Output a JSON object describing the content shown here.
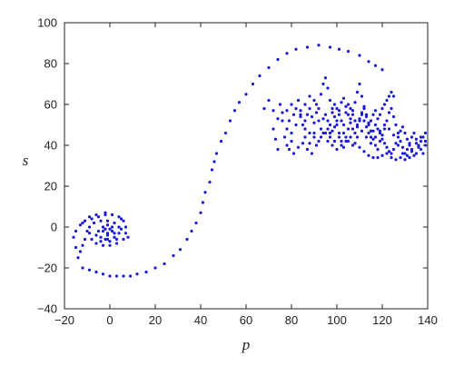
{
  "chart_data": {
    "type": "scatter",
    "title": "",
    "xlabel": "p",
    "ylabel": "s",
    "xlim": [
      -20,
      140
    ],
    "ylim": [
      -40,
      100
    ],
    "xticks": [
      -20,
      0,
      20,
      40,
      60,
      80,
      100,
      120,
      140
    ],
    "yticks": [
      -40,
      -20,
      0,
      20,
      40,
      60,
      80,
      100
    ],
    "grid": false,
    "legend": "none",
    "colors": {
      "points": "#1a1ad6",
      "axes": "#222222",
      "background": "#ffffff"
    },
    "series": [
      {
        "points": [
          [
            -15,
            -10
          ],
          [
            -14,
            -15
          ],
          [
            -12,
            -20
          ],
          [
            -9,
            -21
          ],
          [
            -6,
            -22
          ],
          [
            -3,
            -23
          ],
          [
            0,
            -24
          ],
          [
            3,
            -24
          ],
          [
            6,
            -24
          ],
          [
            9,
            -24
          ],
          [
            12,
            -23
          ],
          [
            16,
            -22
          ],
          [
            20,
            -20
          ],
          [
            24,
            -18
          ],
          [
            28,
            -14
          ],
          [
            31,
            -11
          ],
          [
            34,
            -6
          ],
          [
            36,
            -2
          ],
          [
            38,
            2
          ],
          [
            40,
            7
          ],
          [
            41,
            12
          ],
          [
            42,
            17
          ],
          [
            44,
            22
          ],
          [
            45,
            28
          ],
          [
            46,
            32
          ],
          [
            47,
            36
          ],
          [
            49,
            42
          ],
          [
            51,
            46
          ],
          [
            53,
            52
          ],
          [
            55,
            57
          ],
          [
            57,
            61
          ],
          [
            60,
            65
          ],
          [
            63,
            70
          ],
          [
            66,
            74
          ],
          [
            70,
            78
          ],
          [
            74,
            82
          ],
          [
            78,
            85
          ],
          [
            82,
            87
          ],
          [
            87,
            88
          ],
          [
            92,
            89
          ],
          [
            97,
            88
          ],
          [
            101,
            87
          ],
          [
            105,
            86
          ],
          [
            110,
            84
          ],
          [
            114,
            81
          ],
          [
            117,
            79
          ],
          [
            120,
            77
          ],
          [
            -16,
            -5
          ],
          [
            -15,
            -2
          ],
          [
            -13,
            1
          ],
          [
            -11,
            3
          ],
          [
            -8,
            4
          ],
          [
            -5,
            5
          ],
          [
            -2,
            6
          ],
          [
            1,
            6
          ],
          [
            4,
            5
          ],
          [
            6,
            3
          ],
          [
            7,
            0
          ],
          [
            7,
            -3
          ],
          [
            6,
            -6
          ],
          [
            3,
            -8
          ],
          [
            0,
            -9
          ],
          [
            -3,
            -9
          ],
          [
            -6,
            -8
          ],
          [
            -8,
            -6
          ],
          [
            -9,
            -3
          ],
          [
            -9,
            0
          ],
          [
            -7,
            2
          ],
          [
            -4,
            3
          ],
          [
            -1,
            3
          ],
          [
            2,
            2
          ],
          [
            4,
            0
          ],
          [
            4,
            -3
          ],
          [
            2,
            -5
          ],
          [
            -1,
            -6
          ],
          [
            -4,
            -5
          ],
          [
            -5,
            -2
          ],
          [
            -3,
            0
          ],
          [
            -1,
            1
          ],
          [
            1,
            0
          ],
          [
            1,
            -2
          ],
          [
            -1,
            -3
          ],
          [
            -3,
            -2
          ],
          [
            -2,
            -1
          ],
          [
            0,
            -1
          ],
          [
            -1,
            -4
          ],
          [
            -2,
            -6
          ],
          [
            2,
            -3
          ],
          [
            5,
            -1
          ],
          [
            -6,
            -4
          ],
          [
            -4,
            -7
          ],
          [
            0,
            -7
          ],
          [
            3,
            -6
          ],
          [
            -10,
            -2
          ],
          [
            -11,
            -6
          ],
          [
            -12,
            -9
          ],
          [
            -13,
            -12
          ],
          [
            8,
            -5
          ],
          [
            5,
            4
          ],
          [
            -2,
            7
          ],
          [
            -6,
            6
          ],
          [
            -9,
            5
          ],
          [
            -12,
            2
          ],
          [
            68,
            58
          ],
          [
            70,
            62
          ],
          [
            72,
            57
          ],
          [
            75,
            60
          ],
          [
            76,
            52
          ],
          [
            78,
            48
          ],
          [
            77,
            44
          ],
          [
            79,
            38
          ],
          [
            80,
            42
          ],
          [
            81,
            55
          ],
          [
            83,
            62
          ],
          [
            84,
            57
          ],
          [
            85,
            50
          ],
          [
            86,
            44
          ],
          [
            88,
            41
          ],
          [
            90,
            46
          ],
          [
            91,
            60
          ],
          [
            93,
            65
          ],
          [
            94,
            70
          ],
          [
            95,
            73
          ],
          [
            96,
            68
          ],
          [
            97,
            62
          ],
          [
            98,
            58
          ],
          [
            99,
            54
          ],
          [
            100,
            50
          ],
          [
            101,
            46
          ],
          [
            102,
            42
          ],
          [
            103,
            39
          ],
          [
            104,
            44
          ],
          [
            105,
            48
          ],
          [
            106,
            53
          ],
          [
            107,
            57
          ],
          [
            108,
            61
          ],
          [
            109,
            66
          ],
          [
            110,
            70
          ],
          [
            111,
            64
          ],
          [
            112,
            59
          ],
          [
            113,
            55
          ],
          [
            114,
            51
          ],
          [
            115,
            47
          ],
          [
            116,
            43
          ],
          [
            117,
            40
          ],
          [
            118,
            38
          ],
          [
            119,
            42
          ],
          [
            120,
            45
          ],
          [
            121,
            48
          ],
          [
            122,
            52
          ],
          [
            123,
            56
          ],
          [
            124,
            58
          ],
          [
            125,
            54
          ],
          [
            126,
            50
          ],
          [
            127,
            46
          ],
          [
            128,
            42
          ],
          [
            129,
            39
          ],
          [
            130,
            36
          ],
          [
            131,
            38
          ],
          [
            132,
            41
          ],
          [
            133,
            44
          ],
          [
            134,
            46
          ],
          [
            135,
            43
          ],
          [
            136,
            40
          ],
          [
            137,
            38
          ],
          [
            138,
            36
          ],
          [
            139,
            40
          ],
          [
            95,
            55
          ],
          [
            96,
            52
          ],
          [
            97,
            50
          ],
          [
            98,
            56
          ],
          [
            99,
            60
          ],
          [
            100,
            58
          ],
          [
            101,
            55
          ],
          [
            102,
            52
          ],
          [
            103,
            50
          ],
          [
            104,
            56
          ],
          [
            105,
            60
          ],
          [
            106,
            58
          ],
          [
            107,
            55
          ],
          [
            108,
            52
          ],
          [
            109,
            50
          ],
          [
            110,
            53
          ],
          [
            111,
            56
          ],
          [
            112,
            58
          ],
          [
            113,
            54
          ],
          [
            114,
            50
          ],
          [
            115,
            52
          ],
          [
            116,
            55
          ],
          [
            117,
            57
          ],
          [
            96,
            48
          ],
          [
            97,
            46
          ],
          [
            98,
            47
          ],
          [
            99,
            49
          ],
          [
            100,
            52
          ],
          [
            101,
            57
          ],
          [
            102,
            61
          ],
          [
            103,
            63
          ],
          [
            104,
            59
          ],
          [
            105,
            55
          ],
          [
            106,
            51
          ],
          [
            107,
            48
          ],
          [
            108,
            46
          ],
          [
            109,
            49
          ],
          [
            110,
            52
          ],
          [
            111,
            55
          ],
          [
            112,
            52
          ],
          [
            113,
            49
          ],
          [
            114,
            46
          ],
          [
            115,
            44
          ],
          [
            116,
            47
          ],
          [
            117,
            50
          ],
          [
            118,
            53
          ],
          [
            119,
            55
          ],
          [
            120,
            58
          ],
          [
            121,
            60
          ],
          [
            122,
            62
          ],
          [
            123,
            64
          ],
          [
            124,
            66
          ],
          [
            125,
            64
          ],
          [
            118,
            48
          ],
          [
            119,
            46
          ],
          [
            120,
            43
          ],
          [
            121,
            41
          ],
          [
            122,
            39
          ],
          [
            123,
            37
          ],
          [
            124,
            36
          ],
          [
            125,
            38
          ],
          [
            126,
            41
          ],
          [
            127,
            44
          ],
          [
            128,
            47
          ],
          [
            129,
            49
          ],
          [
            130,
            46
          ],
          [
            131,
            43
          ],
          [
            132,
            40
          ],
          [
            133,
            37
          ],
          [
            134,
            35
          ],
          [
            135,
            36
          ],
          [
            136,
            39
          ],
          [
            137,
            42
          ],
          [
            138,
            44
          ],
          [
            139,
            42
          ],
          [
            86,
            52
          ],
          [
            87,
            55
          ],
          [
            88,
            58
          ],
          [
            89,
            54
          ],
          [
            90,
            51
          ],
          [
            91,
            56
          ],
          [
            92,
            52
          ],
          [
            93,
            48
          ],
          [
            94,
            53
          ],
          [
            92,
            58
          ],
          [
            90,
            62
          ],
          [
            88,
            64
          ],
          [
            86,
            60
          ],
          [
            84,
            55
          ],
          [
            82,
            50
          ],
          [
            80,
            46
          ],
          [
            79,
            52
          ],
          [
            78,
            57
          ],
          [
            80,
            60
          ],
          [
            82,
            58
          ],
          [
            84,
            54
          ],
          [
            86,
            48
          ],
          [
            88,
            46
          ],
          [
            90,
            44
          ],
          [
            92,
            42
          ],
          [
            94,
            46
          ],
          [
            96,
            42
          ],
          [
            98,
            40
          ],
          [
            100,
            38
          ],
          [
            102,
            40
          ],
          [
            104,
            42
          ],
          [
            106,
            44
          ],
          [
            108,
            41
          ],
          [
            110,
            39
          ],
          [
            112,
            37
          ],
          [
            114,
            35
          ],
          [
            116,
            34
          ],
          [
            118,
            34
          ],
          [
            120,
            35
          ],
          [
            122,
            36
          ],
          [
            124,
            34
          ],
          [
            126,
            33
          ],
          [
            128,
            34
          ],
          [
            130,
            33
          ],
          [
            132,
            34
          ],
          [
            74,
            38
          ],
          [
            73,
            43
          ],
          [
            72,
            48
          ],
          [
            74,
            53
          ],
          [
            76,
            56
          ],
          [
            78,
            40
          ],
          [
            81,
            36
          ],
          [
            83,
            39
          ],
          [
            85,
            41
          ],
          [
            87,
            38
          ],
          [
            89,
            36
          ],
          [
            91,
            40
          ],
          [
            93,
            44
          ],
          [
            95,
            46
          ],
          [
            97,
            44
          ],
          [
            99,
            42
          ],
          [
            101,
            44
          ],
          [
            103,
            46
          ],
          [
            105,
            42
          ],
          [
            107,
            40
          ],
          [
            109,
            44
          ],
          [
            111,
            47
          ],
          [
            113,
            44
          ],
          [
            115,
            41
          ],
          [
            117,
            44
          ],
          [
            119,
            47
          ],
          [
            121,
            50
          ],
          [
            123,
            48
          ],
          [
            125,
            45
          ],
          [
            127,
            40
          ],
          [
            129,
            36
          ],
          [
            131,
            35
          ],
          [
            133,
            38
          ],
          [
            135,
            41
          ],
          [
            137,
            44
          ],
          [
            139,
            46
          ]
        ]
      }
    ]
  }
}
